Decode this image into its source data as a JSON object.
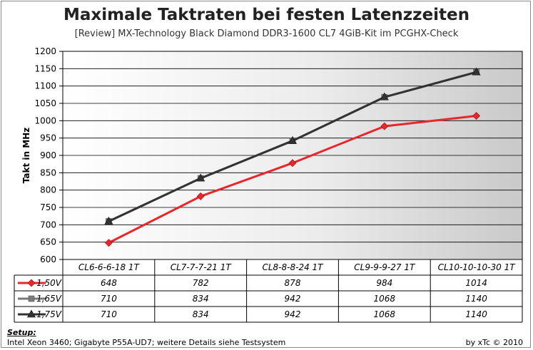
{
  "chart_data": {
    "type": "line",
    "title": "Maximale Taktraten bei festen Latenzzeiten",
    "subtitle": "[Review] MX-Technology Black Diamond DDR3-1600 CL7 4GiB-Kit im PCGHX-Check",
    "ylabel": "Takt in MHz",
    "ylim": [
      600,
      1200
    ],
    "ytick_step": 50,
    "categories": [
      "CL6-6-6-18 1T",
      "CL7-7-7-21 1T",
      "CL8-8-8-24 1T",
      "CL9-9-9-27 1T",
      "CL10-10-10-30 1T"
    ],
    "series": [
      {
        "name": "1,50V",
        "values": [
          648,
          782,
          878,
          984,
          1014
        ],
        "color": "#e8262b",
        "marker": "diamond"
      },
      {
        "name": "1,65V",
        "values": [
          710,
          834,
          942,
          1068,
          1140
        ],
        "color": "#7a7a7a",
        "marker": "square"
      },
      {
        "name": "1,75V",
        "values": [
          710,
          834,
          942,
          1068,
          1140
        ],
        "color": "#333333",
        "marker": "triangle"
      }
    ],
    "grid": true,
    "legend": "data-table"
  },
  "footer": {
    "setup_label": "Setup:",
    "setup_text": "Intel Xeon 3460; Gigabyte P55A-UD7; weitere Details siehe Testsystem",
    "credit": "by xTc © 2010"
  }
}
